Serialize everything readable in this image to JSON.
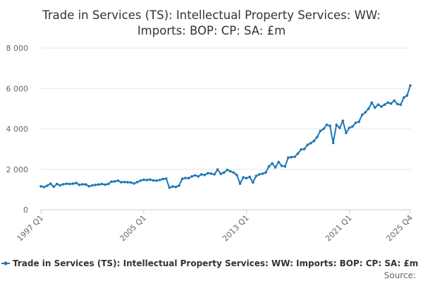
{
  "chart_data": {
    "type": "line",
    "title_line1": "Trade in Services (TS): Intellectual Property Services: WW:",
    "title_line2": "Imports: BOP: CP: SA: £m",
    "xlabel": "",
    "ylabel": "",
    "ylim": [
      0,
      8000
    ],
    "yticks": [
      0,
      2000,
      4000,
      6000,
      8000
    ],
    "ytick_labels": [
      "0",
      "2 000",
      "4 000",
      "6 000",
      "8 000"
    ],
    "xtick_labels": [
      "1997 Q1",
      "2005 Q1",
      "2013 Q1",
      "2021 Q1",
      "2025 Q4"
    ],
    "grid": "horizontal",
    "legend_position": "bottom",
    "line_color": "#1f77b4",
    "series": [
      {
        "name": "Trade in Services (TS): Intellectual Property Services: WW: Imports: BOP: CP: SA: £m",
        "values": [
          1160,
          1120,
          1190,
          1290,
          1140,
          1270,
          1210,
          1260,
          1290,
          1270,
          1290,
          1320,
          1230,
          1260,
          1250,
          1160,
          1200,
          1230,
          1250,
          1270,
          1240,
          1280,
          1390,
          1400,
          1440,
          1360,
          1370,
          1360,
          1350,
          1300,
          1370,
          1440,
          1480,
          1470,
          1490,
          1450,
          1440,
          1470,
          1520,
          1540,
          1090,
          1150,
          1130,
          1190,
          1530,
          1570,
          1560,
          1650,
          1700,
          1650,
          1750,
          1720,
          1810,
          1790,
          1750,
          1990,
          1770,
          1840,
          1970,
          1900,
          1840,
          1720,
          1290,
          1600,
          1560,
          1620,
          1350,
          1670,
          1750,
          1780,
          1840,
          2140,
          2290,
          2100,
          2360,
          2170,
          2140,
          2580,
          2600,
          2620,
          2780,
          2980,
          3000,
          3210,
          3290,
          3400,
          3600,
          3900,
          4000,
          4200,
          4150,
          3300,
          4200,
          4050,
          4400,
          3800,
          4050,
          4120,
          4300,
          4350,
          4700,
          4820,
          5000,
          5300,
          5050,
          5200,
          5100,
          5200,
          5300,
          5250,
          5400,
          5230,
          5200,
          5550,
          5650,
          6150
        ]
      }
    ]
  },
  "legend": {
    "label": "Trade in Services (TS): Intellectual Property Services: WW: Imports: BOP: CP: SA: £m"
  },
  "source": {
    "label": "Source:"
  }
}
